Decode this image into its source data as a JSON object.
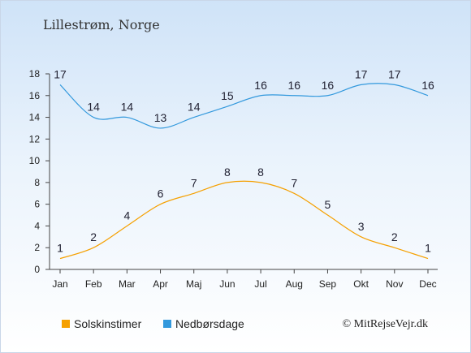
{
  "chart_data": {
    "type": "line",
    "title": "Lillestrøm, Norge",
    "categories": [
      "Jan",
      "Feb",
      "Mar",
      "Apr",
      "Maj",
      "Jun",
      "Jul",
      "Aug",
      "Sep",
      "Okt",
      "Nov",
      "Dec"
    ],
    "ylim": [
      0,
      18
    ],
    "yticks": [
      0,
      2,
      4,
      6,
      8,
      10,
      12,
      14,
      16,
      18
    ],
    "grid": false,
    "legend_position": "bottom",
    "series": [
      {
        "name": "Solskinstimer",
        "color": "#f5a000",
        "values": [
          1,
          2,
          4,
          6,
          7,
          8,
          8,
          7,
          5,
          3,
          2,
          1
        ]
      },
      {
        "name": "Nedbørsdage",
        "color": "#3399dd",
        "values": [
          17,
          14,
          14,
          13,
          14,
          15,
          16,
          16,
          16,
          17,
          17,
          16
        ]
      }
    ],
    "credit": "© MitRejseVejr.dk"
  }
}
